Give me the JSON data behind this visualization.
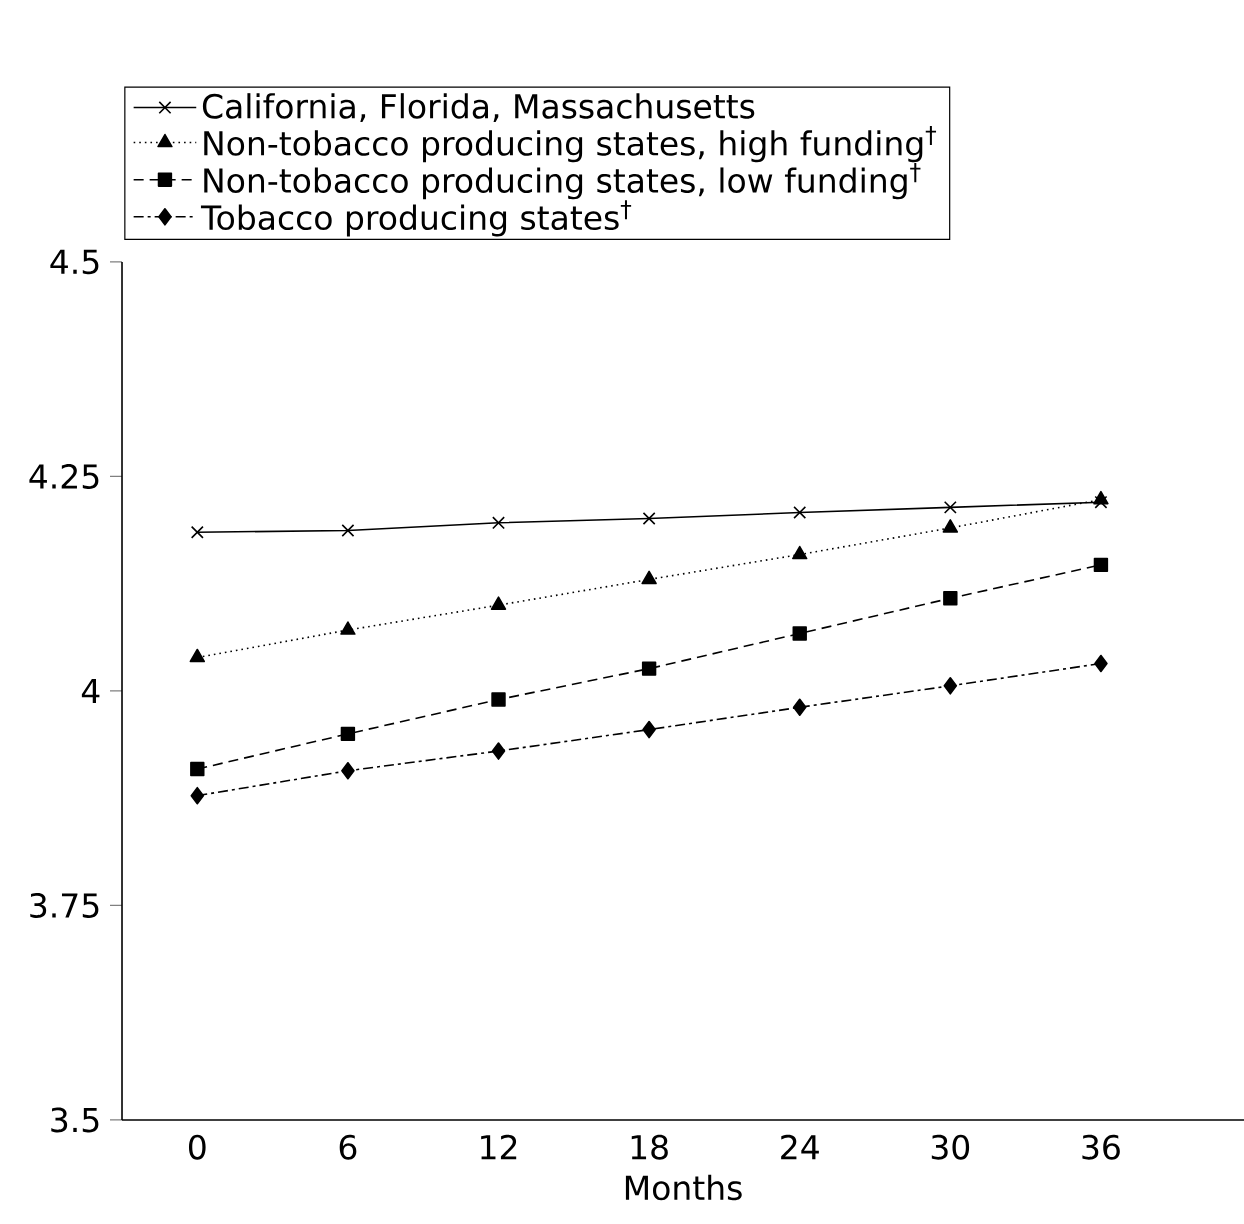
{
  "chart_data": {
    "type": "line",
    "xlabel": "Months",
    "categories": [
      "0",
      "6",
      "12",
      "18",
      "24",
      "30",
      "36"
    ],
    "ylim": [
      3.5,
      4.5
    ],
    "yticks": [
      3.5,
      3.75,
      4,
      4.25,
      4.5
    ],
    "legend": "top",
    "grid": false,
    "series": [
      {
        "name": "California, Florida, Massachusetts",
        "color": "#000000",
        "marker": "cross",
        "line_style": "solid",
        "values": [
          4.185,
          4.187,
          4.196,
          4.201,
          4.208,
          4.214,
          4.22
        ]
      },
      {
        "name": "Non-tobacco producing states, high funding$^{†}$",
        "color": "#000000",
        "marker": "triangle",
        "line_style": "dotted",
        "values": [
          4.039,
          4.071,
          4.1,
          4.13,
          4.159,
          4.19,
          4.223
        ]
      },
      {
        "name": "Non-tobacco producing states, low funding$^{†}$",
        "color": "#000000",
        "marker": "square",
        "line_style": "dashed",
        "values": [
          3.909,
          3.95,
          3.99,
          4.026,
          4.067,
          4.108,
          4.147
        ]
      },
      {
        "name": "Tobacco producing states$^{†}$",
        "color": "#000000",
        "marker": "diamond",
        "line_style": "dashdot",
        "values": [
          3.878,
          3.907,
          3.93,
          3.955,
          3.981,
          4.006,
          4.032
        ]
      }
    ]
  }
}
